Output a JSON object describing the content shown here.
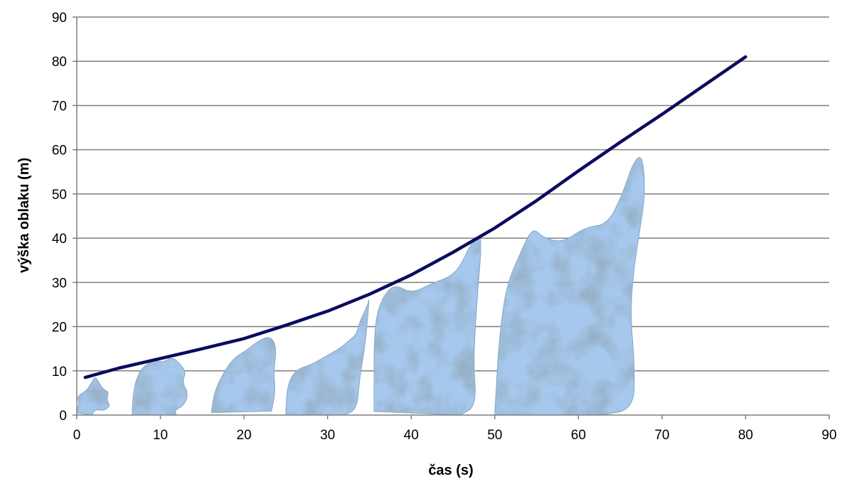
{
  "chart_data": {
    "type": "line",
    "title": "",
    "xlabel": "čas (s)",
    "ylabel": "výška oblaku (m)",
    "xlim": [
      0,
      90
    ],
    "ylim": [
      0,
      90
    ],
    "x_ticks": [
      "0",
      "10",
      "20",
      "30",
      "40",
      "50",
      "60",
      "70",
      "80",
      "90"
    ],
    "y_ticks": [
      "0",
      "10",
      "20",
      "30",
      "40",
      "50",
      "60",
      "70",
      "80",
      "90"
    ],
    "grid": "horizontal",
    "legend": "none",
    "series": [
      {
        "color": "#0b0b5e",
        "x": [
          1,
          5,
          10,
          15,
          20,
          25,
          30,
          35,
          40,
          45,
          50,
          55,
          60,
          65,
          70,
          75,
          80
        ],
        "y": [
          8.5,
          10.6,
          12.8,
          15,
          17.3,
          20.3,
          23.5,
          27.3,
          31.7,
          36.8,
          42.3,
          48.5,
          55.2,
          61.7,
          68,
          74.5,
          81
        ]
      }
    ],
    "illustration": {
      "description_icon": "smoke-cloud-icon",
      "colors": {
        "light": "#a6c8ec",
        "mid": "#7ea3c8",
        "dark": "#4f6f93"
      },
      "clouds": [
        {
          "x_center": 2,
          "height": 9.5
        },
        {
          "x_center": 10,
          "height": 13.5
        },
        {
          "x_center": 20,
          "height": 18
        },
        {
          "x_center": 30,
          "height": 27
        },
        {
          "x_center": 42,
          "height": 41
        },
        {
          "x_center": 59,
          "height": 59
        }
      ]
    }
  }
}
